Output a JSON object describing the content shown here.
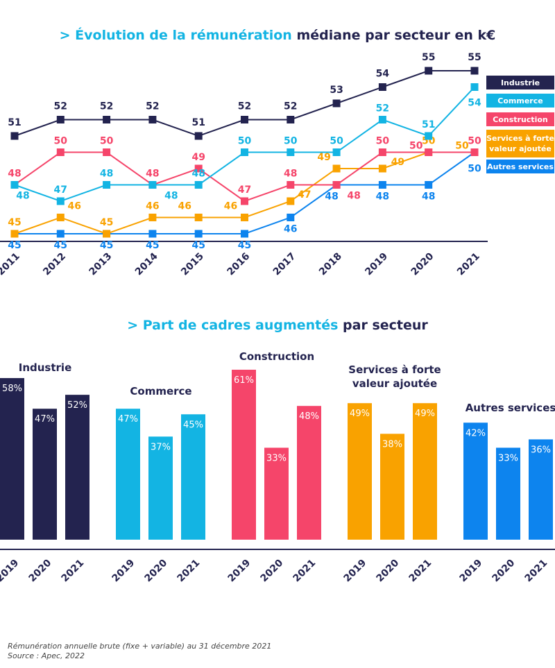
{
  "titles": {
    "line_prefix": "> Évolution de la rémunération",
    "line_suffix": " médiane par secteur en k€",
    "bar_prefix": "> Part de cadres augmentés",
    "bar_suffix": " par secteur"
  },
  "footnotes": {
    "line1": "Rémunération annuelle brute (fixe + variable) au 31 décembre 2021",
    "line2": "Source : Apec, 2022"
  },
  "colors": {
    "Industrie": "#23234f",
    "Commerce": "#13b4e3",
    "Construction": "#f5456a",
    "Services à forte valeur ajoutée": "#f9a200",
    "Autres services": "#0d84ee"
  },
  "chart_data": [
    {
      "type": "line",
      "title": "> Évolution de la rémunération médiane par secteur en k€",
      "x": [
        "2011",
        "2012",
        "2013",
        "2014",
        "2015",
        "2016",
        "2017",
        "2018",
        "2019",
        "2020",
        "2021"
      ],
      "legend_position": "right",
      "grid": false,
      "ylim": [
        44,
        56
      ],
      "series": [
        {
          "name": "Industrie",
          "values": [
            51,
            52,
            52,
            52,
            51,
            52,
            52,
            53,
            54,
            55,
            55
          ]
        },
        {
          "name": "Commerce",
          "values": [
            48,
            47,
            48,
            48,
            48,
            50,
            50,
            50,
            52,
            51,
            54
          ]
        },
        {
          "name": "Construction",
          "values": [
            48,
            50,
            50,
            48,
            49,
            47,
            48,
            48,
            50,
            50,
            50
          ]
        },
        {
          "name": "Services à forte valeur ajoutée",
          "values": [
            45,
            46,
            45,
            46,
            46,
            46,
            47,
            49,
            49,
            50,
            50
          ]
        },
        {
          "name": "Autres services",
          "values": [
            45,
            45,
            45,
            45,
            45,
            45,
            46,
            48,
            48,
            48,
            50
          ]
        }
      ]
    },
    {
      "type": "bar",
      "title": "> Part de cadres augmentés par secteur",
      "unit": "%",
      "categories": [
        "2019",
        "2020",
        "2021"
      ],
      "ylim": [
        0,
        61
      ],
      "series": [
        {
          "name": "Industrie",
          "values": [
            58,
            47,
            52
          ]
        },
        {
          "name": "Commerce",
          "values": [
            47,
            37,
            45
          ]
        },
        {
          "name": "Construction",
          "values": [
            61,
            33,
            48
          ]
        },
        {
          "name": "Services à forte valeur ajoutée",
          "values": [
            49,
            38,
            49
          ]
        },
        {
          "name": "Autres services",
          "values": [
            42,
            33,
            36
          ]
        }
      ]
    }
  ]
}
